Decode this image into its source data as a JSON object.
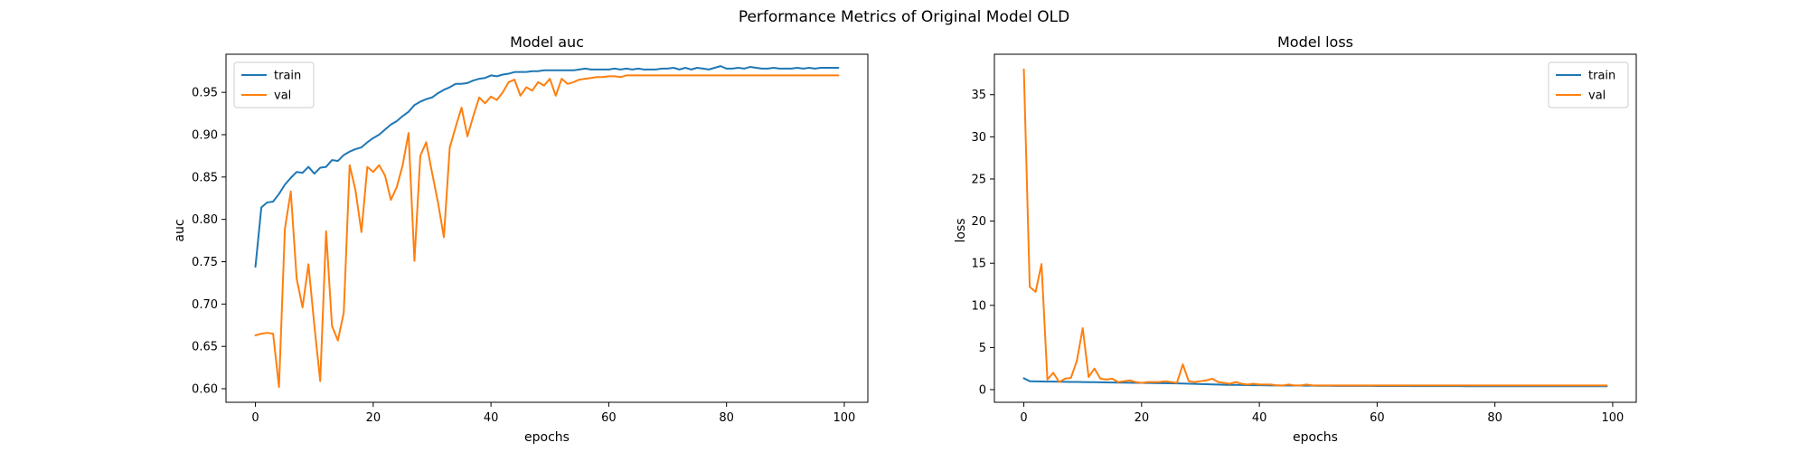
{
  "suptitle": "Performance Metrics of Original Model OLD",
  "colors": {
    "train": "#1f77b4",
    "val": "#ff7f0e"
  },
  "chart_data": [
    {
      "type": "line",
      "title": "Model auc",
      "xlabel": "epochs",
      "ylabel": "auc",
      "xlim": [
        -5,
        104
      ],
      "ylim": [
        0.584,
        0.995
      ],
      "xticks": [
        0,
        20,
        40,
        60,
        80,
        100
      ],
      "yticks": [
        0.6,
        0.65,
        0.7,
        0.75,
        0.8,
        0.85,
        0.9,
        0.95
      ],
      "ytick_labels": [
        "0.60",
        "0.65",
        "0.70",
        "0.75",
        "0.80",
        "0.85",
        "0.90",
        "0.95"
      ],
      "legend": "upper-left",
      "grid": false,
      "x": [
        0,
        1,
        2,
        3,
        4,
        5,
        6,
        7,
        8,
        9,
        10,
        11,
        12,
        13,
        14,
        15,
        16,
        17,
        18,
        19,
        20,
        21,
        22,
        23,
        24,
        25,
        26,
        27,
        28,
        29,
        30,
        31,
        32,
        33,
        34,
        35,
        36,
        37,
        38,
        39,
        40,
        41,
        42,
        43,
        44,
        45,
        46,
        47,
        48,
        49,
        50,
        51,
        52,
        53,
        54,
        55,
        56,
        57,
        58,
        59,
        60,
        61,
        62,
        63,
        64,
        65,
        66,
        67,
        68,
        69,
        70,
        71,
        72,
        73,
        74,
        75,
        76,
        77,
        78,
        79,
        80,
        81,
        82,
        83,
        84,
        85,
        86,
        87,
        88,
        89,
        90,
        91,
        92,
        93,
        94,
        95,
        96,
        97,
        98,
        99
      ],
      "series": [
        {
          "name": "train",
          "values": [
            0.744,
            0.814,
            0.82,
            0.821,
            0.83,
            0.841,
            0.849,
            0.856,
            0.855,
            0.862,
            0.854,
            0.861,
            0.862,
            0.87,
            0.869,
            0.876,
            0.88,
            0.883,
            0.885,
            0.891,
            0.896,
            0.9,
            0.906,
            0.912,
            0.916,
            0.922,
            0.927,
            0.935,
            0.939,
            0.942,
            0.944,
            0.949,
            0.953,
            0.956,
            0.96,
            0.96,
            0.961,
            0.964,
            0.966,
            0.967,
            0.97,
            0.969,
            0.971,
            0.972,
            0.974,
            0.974,
            0.974,
            0.975,
            0.975,
            0.976,
            0.976,
            0.976,
            0.976,
            0.976,
            0.976,
            0.977,
            0.978,
            0.977,
            0.977,
            0.977,
            0.977,
            0.978,
            0.977,
            0.978,
            0.977,
            0.978,
            0.977,
            0.977,
            0.977,
            0.978,
            0.978,
            0.979,
            0.977,
            0.979,
            0.977,
            0.979,
            0.978,
            0.977,
            0.979,
            0.981,
            0.978,
            0.978,
            0.979,
            0.978,
            0.98,
            0.979,
            0.978,
            0.978,
            0.979,
            0.978,
            0.978,
            0.978,
            0.979,
            0.978,
            0.979,
            0.978,
            0.979,
            0.979,
            0.979,
            0.979
          ]
        },
        {
          "name": "val",
          "values": [
            0.663,
            0.665,
            0.666,
            0.665,
            0.602,
            0.789,
            0.833,
            0.73,
            0.696,
            0.747,
            0.675,
            0.609,
            0.786,
            0.674,
            0.657,
            0.69,
            0.864,
            0.834,
            0.785,
            0.862,
            0.856,
            0.864,
            0.852,
            0.823,
            0.838,
            0.864,
            0.902,
            0.751,
            0.875,
            0.891,
            0.855,
            0.82,
            0.779,
            0.885,
            0.909,
            0.932,
            0.898,
            0.922,
            0.944,
            0.937,
            0.945,
            0.941,
            0.95,
            0.962,
            0.965,
            0.946,
            0.956,
            0.952,
            0.962,
            0.958,
            0.966,
            0.946,
            0.966,
            0.96,
            0.962,
            0.965,
            0.966,
            0.967,
            0.968,
            0.968,
            0.969,
            0.969,
            0.968,
            0.97,
            0.97,
            0.97,
            0.97,
            0.97,
            0.97,
            0.97,
            0.97,
            0.97,
            0.97,
            0.97,
            0.97,
            0.97,
            0.97,
            0.97,
            0.97,
            0.97,
            0.97,
            0.97,
            0.97,
            0.97,
            0.97,
            0.97,
            0.97,
            0.97,
            0.97,
            0.97,
            0.97,
            0.97,
            0.97,
            0.97,
            0.97,
            0.97,
            0.97,
            0.97,
            0.97,
            0.97
          ]
        }
      ]
    },
    {
      "type": "line",
      "title": "Model loss",
      "xlabel": "epochs",
      "ylabel": "loss",
      "xlim": [
        -5,
        104
      ],
      "ylim": [
        -1.5,
        39.8
      ],
      "xticks": [
        0,
        20,
        40,
        60,
        80,
        100
      ],
      "yticks": [
        0,
        5,
        10,
        15,
        20,
        25,
        30,
        35
      ],
      "ytick_labels": [
        "0",
        "5",
        "10",
        "15",
        "20",
        "25",
        "30",
        "35"
      ],
      "legend": "upper-right",
      "grid": false,
      "x": [
        0,
        1,
        2,
        3,
        4,
        5,
        6,
        7,
        8,
        9,
        10,
        11,
        12,
        13,
        14,
        15,
        16,
        17,
        18,
        19,
        20,
        21,
        22,
        23,
        24,
        25,
        26,
        27,
        28,
        29,
        30,
        31,
        32,
        33,
        34,
        35,
        36,
        37,
        38,
        39,
        40,
        41,
        42,
        43,
        44,
        45,
        46,
        47,
        48,
        49,
        50,
        51,
        52,
        53,
        54,
        55,
        56,
        57,
        58,
        59,
        60,
        61,
        62,
        63,
        64,
        65,
        66,
        67,
        68,
        69,
        70,
        71,
        72,
        73,
        74,
        75,
        76,
        77,
        78,
        79,
        80,
        81,
        82,
        83,
        84,
        85,
        86,
        87,
        88,
        89,
        90,
        91,
        92,
        93,
        94,
        95,
        96,
        97,
        98,
        99
      ],
      "series": [
        {
          "name": "train",
          "values": [
            1.35,
            1.0,
            0.98,
            0.97,
            0.96,
            0.95,
            0.94,
            0.93,
            0.92,
            0.91,
            0.9,
            0.89,
            0.88,
            0.87,
            0.86,
            0.85,
            0.84,
            0.83,
            0.82,
            0.81,
            0.8,
            0.79,
            0.78,
            0.77,
            0.76,
            0.75,
            0.74,
            0.72,
            0.7,
            0.68,
            0.66,
            0.64,
            0.62,
            0.6,
            0.58,
            0.57,
            0.56,
            0.55,
            0.54,
            0.53,
            0.52,
            0.51,
            0.5,
            0.5,
            0.49,
            0.49,
            0.48,
            0.48,
            0.47,
            0.47,
            0.46,
            0.46,
            0.46,
            0.45,
            0.45,
            0.45,
            0.44,
            0.44,
            0.44,
            0.44,
            0.43,
            0.43,
            0.43,
            0.43,
            0.43,
            0.43,
            0.42,
            0.42,
            0.42,
            0.42,
            0.42,
            0.42,
            0.42,
            0.42,
            0.42,
            0.41,
            0.41,
            0.41,
            0.41,
            0.41,
            0.41,
            0.41,
            0.41,
            0.41,
            0.41,
            0.41,
            0.41,
            0.41,
            0.41,
            0.41,
            0.41,
            0.41,
            0.41,
            0.41,
            0.41,
            0.41,
            0.41,
            0.41,
            0.41,
            0.41
          ]
        },
        {
          "name": "val",
          "values": [
            38.0,
            12.2,
            11.6,
            14.9,
            1.2,
            2.0,
            0.9,
            1.3,
            1.4,
            3.4,
            7.3,
            1.5,
            2.5,
            1.3,
            1.2,
            1.3,
            0.9,
            1.0,
            1.1,
            0.9,
            0.8,
            0.9,
            0.9,
            0.9,
            1.0,
            0.9,
            0.8,
            3.0,
            1.0,
            0.9,
            1.0,
            1.1,
            1.3,
            0.9,
            0.8,
            0.7,
            0.9,
            0.7,
            0.6,
            0.7,
            0.6,
            0.6,
            0.6,
            0.5,
            0.5,
            0.6,
            0.5,
            0.5,
            0.6,
            0.5,
            0.5,
            0.5,
            0.5,
            0.5,
            0.5,
            0.5,
            0.5,
            0.5,
            0.5,
            0.5,
            0.5,
            0.5,
            0.5,
            0.5,
            0.5,
            0.5,
            0.5,
            0.5,
            0.5,
            0.5,
            0.5,
            0.5,
            0.5,
            0.5,
            0.5,
            0.5,
            0.5,
            0.5,
            0.5,
            0.5,
            0.5,
            0.5,
            0.5,
            0.5,
            0.5,
            0.5,
            0.5,
            0.5,
            0.5,
            0.5,
            0.5,
            0.5,
            0.5,
            0.5,
            0.5,
            0.5,
            0.5,
            0.5,
            0.5,
            0.5
          ]
        }
      ]
    }
  ]
}
